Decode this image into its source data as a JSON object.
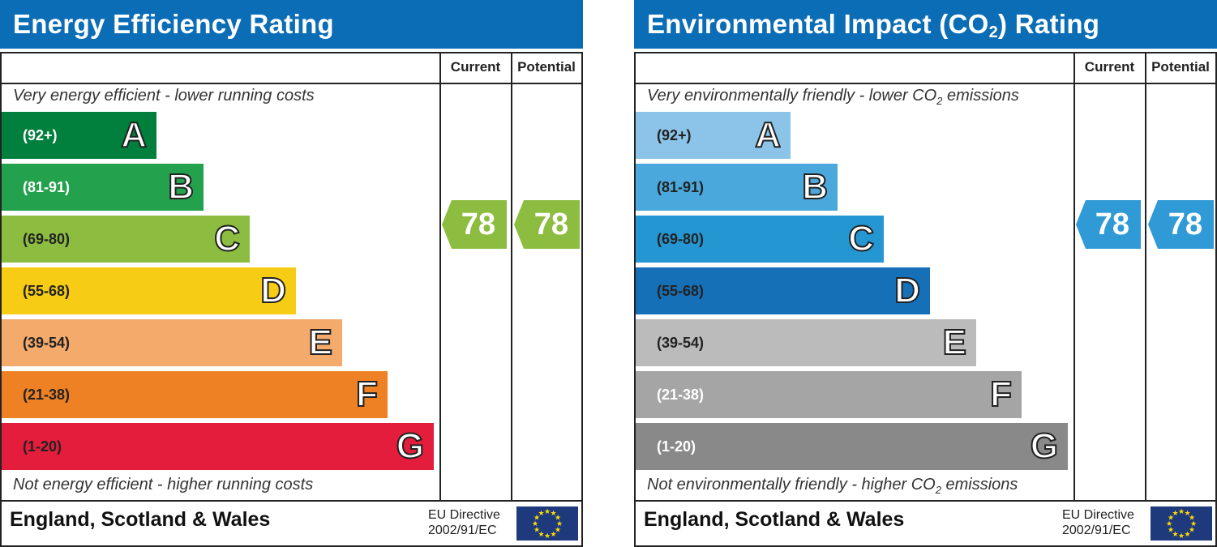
{
  "chart_data": [
    {
      "type": "bar",
      "title": "Energy Efficiency Rating",
      "title_parts": [
        "Energy Efficiency Rating"
      ],
      "columns": [
        "Current",
        "Potential"
      ],
      "top_note": "Very energy efficient - lower running costs",
      "top_note_parts": [
        "Very energy efficient - lower running costs"
      ],
      "bottom_note": "Not energy efficient - higher running costs",
      "bottom_note_parts": [
        "Not energy efficient - higher running costs"
      ],
      "bands": [
        {
          "letter": "A",
          "range": "(92+)",
          "color": "#007f3d",
          "text_color": "#ffffff"
        },
        {
          "letter": "B",
          "range": "(81-91)",
          "color": "#23a14d",
          "text_color": "#ffffff"
        },
        {
          "letter": "C",
          "range": "(69-80)",
          "color": "#8dbd40",
          "text_color": "#222222"
        },
        {
          "letter": "D",
          "range": "(55-68)",
          "color": "#f7cc15",
          "text_color": "#222222"
        },
        {
          "letter": "E",
          "range": "(39-54)",
          "color": "#f3aa6b",
          "text_color": "#222222"
        },
        {
          "letter": "F",
          "range": "(21-38)",
          "color": "#ee8124",
          "text_color": "#222222"
        },
        {
          "letter": "G",
          "range": "(1-20)",
          "color": "#e31d3b",
          "text_color": "#222222"
        }
      ],
      "current": 78,
      "potential": 78,
      "current_band": "C",
      "potential_band": "C",
      "arrow_color": "#8dbd40",
      "footer": "England, Scotland & Wales",
      "directive": [
        "EU Directive",
        "2002/91/EC"
      ]
    },
    {
      "type": "bar",
      "title": "Environmental Impact (CO2) Rating",
      "title_parts": [
        "Environmental Impact (CO",
        "2",
        ") Rating"
      ],
      "columns": [
        "Current",
        "Potential"
      ],
      "top_note": "Very environmentally friendly - lower CO2 emissions",
      "top_note_parts": [
        "Very environmentally friendly - lower CO",
        "2",
        " emissions"
      ],
      "bottom_note": "Not environmentally friendly - higher CO2 emissions",
      "bottom_note_parts": [
        "Not environmentally friendly - higher CO",
        "2",
        " emissions"
      ],
      "bands": [
        {
          "letter": "A",
          "range": "(92+)",
          "color": "#8bc4e8",
          "text_color": "#222222"
        },
        {
          "letter": "B",
          "range": "(81-91)",
          "color": "#4aa8dc",
          "text_color": "#222222"
        },
        {
          "letter": "C",
          "range": "(69-80)",
          "color": "#2496d1",
          "text_color": "#222222"
        },
        {
          "letter": "D",
          "range": "(55-68)",
          "color": "#1570b8",
          "text_color": "#222222"
        },
        {
          "letter": "E",
          "range": "(39-54)",
          "color": "#bbbbbb",
          "text_color": "#222222"
        },
        {
          "letter": "F",
          "range": "(21-38)",
          "color": "#a5a5a5",
          "text_color": "#ffffff"
        },
        {
          "letter": "G",
          "range": "(1-20)",
          "color": "#898989",
          "text_color": "#ffffff"
        }
      ],
      "current": 78,
      "potential": 78,
      "current_band": "C",
      "potential_band": "C",
      "arrow_color": "#2f9ad6",
      "footer": "England, Scotland & Wales",
      "directive": [
        "EU Directive",
        "2002/91/EC"
      ]
    }
  ]
}
